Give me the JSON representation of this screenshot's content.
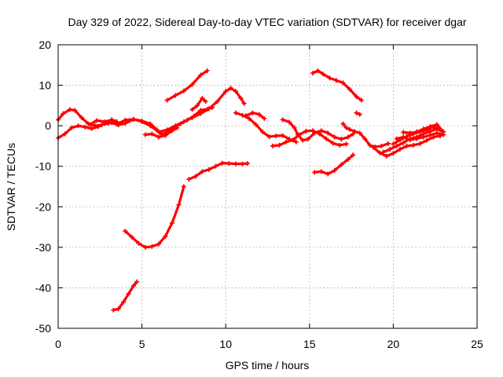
{
  "chart_data": {
    "type": "line",
    "title": "Day 329 of 2022, Sidereal Day-to-day VTEC variation (SDTVAR) for receiver dgar",
    "xlabel": "GPS time / hours",
    "ylabel": "SDTVAR / TECUs",
    "xlim": [
      0,
      25
    ],
    "ylim": [
      -50,
      20
    ],
    "xticks": [
      0,
      5,
      10,
      15,
      20,
      25
    ],
    "yticks": [
      -50,
      -40,
      -30,
      -20,
      -10,
      0,
      10,
      20
    ],
    "grid": true,
    "color": "#ff0000",
    "series": [
      {
        "name": "s1",
        "points": [
          [
            0,
            1.5
          ],
          [
            0.3,
            3
          ],
          [
            0.7,
            4
          ],
          [
            1.0,
            3.8
          ],
          [
            1.4,
            2
          ],
          [
            1.8,
            0.5
          ],
          [
            2.2,
            0
          ],
          [
            2.6,
            0.2
          ],
          [
            3.0,
            0.6
          ],
          [
            3.4,
            1.0
          ]
        ]
      },
      {
        "name": "s2",
        "points": [
          [
            0,
            -3
          ],
          [
            0.4,
            -2
          ],
          [
            0.8,
            -0.5
          ],
          [
            1.2,
            0
          ],
          [
            1.6,
            -0.3
          ],
          [
            2.0,
            -0.7
          ],
          [
            2.4,
            -0.2
          ],
          [
            2.8,
            0.6
          ],
          [
            3.2,
            0.8
          ],
          [
            3.6,
            0.2
          ],
          [
            4.0,
            0.6
          ],
          [
            4.5,
            1.6
          ],
          [
            5.0,
            1.0
          ],
          [
            5.5,
            0
          ],
          [
            6.0,
            -1.5
          ],
          [
            6.5,
            -1
          ],
          [
            7.0,
            0
          ],
          [
            7.5,
            1.0
          ],
          [
            8.0,
            2
          ],
          [
            8.5,
            3
          ],
          [
            9.0,
            4.2
          ],
          [
            9.5,
            6
          ],
          [
            10.0,
            8.5
          ],
          [
            10.3,
            9.3
          ],
          [
            10.6,
            8.5
          ],
          [
            10.9,
            6.8
          ],
          [
            11.1,
            5.5
          ]
        ]
      },
      {
        "name": "s3",
        "points": [
          [
            1.9,
            0.3
          ],
          [
            2.3,
            1.3
          ],
          [
            2.8,
            1.0
          ],
          [
            3.2,
            1.5
          ],
          [
            3.5,
            1.0
          ]
        ]
      },
      {
        "name": "s4",
        "points": [
          [
            3.0,
            0.8
          ],
          [
            3.5,
            0.4
          ],
          [
            4.0,
            1.4
          ],
          [
            4.5,
            1.6
          ],
          [
            5.0,
            1.2
          ],
          [
            5.5,
            0.5
          ],
          [
            5.9,
            -1.0
          ],
          [
            6.2,
            -2.2
          ],
          [
            6.5,
            -1.5
          ],
          [
            6.9,
            -0.5
          ],
          [
            7.3,
            0.5
          ],
          [
            7.7,
            1.4
          ],
          [
            8.1,
            2.4
          ],
          [
            8.5,
            3.8
          ],
          [
            8.9,
            4.1
          ],
          [
            9.2,
            4.5
          ]
        ]
      },
      {
        "name": "s5",
        "points": [
          [
            5.2,
            -2.2
          ],
          [
            5.6,
            -2.0
          ],
          [
            6.0,
            -2.8
          ],
          [
            6.4,
            -2.4
          ],
          [
            6.8,
            -1.2
          ],
          [
            7.1,
            -0.5
          ]
        ]
      },
      {
        "name": "s6",
        "points": [
          [
            6.5,
            6.3
          ],
          [
            7.0,
            7.5
          ],
          [
            7.5,
            8.6
          ],
          [
            8.0,
            10.2
          ],
          [
            8.5,
            12.5
          ],
          [
            8.9,
            13.6
          ]
        ]
      },
      {
        "name": "s7",
        "points": [
          [
            8.0,
            4.0
          ],
          [
            8.3,
            5.0
          ],
          [
            8.6,
            6.8
          ],
          [
            8.8,
            6.0
          ]
        ]
      },
      {
        "name": "s8",
        "points": [
          [
            3.3,
            -45.5
          ],
          [
            3.6,
            -45.2
          ],
          [
            3.9,
            -43.5
          ],
          [
            4.2,
            -41.5
          ],
          [
            4.5,
            -39.5
          ],
          [
            4.7,
            -38.5
          ]
        ]
      },
      {
        "name": "s9",
        "points": [
          [
            4.0,
            -26
          ],
          [
            4.4,
            -27.5
          ],
          [
            4.8,
            -29
          ],
          [
            5.2,
            -30
          ],
          [
            5.6,
            -29.8
          ],
          [
            6.0,
            -29.2
          ],
          [
            6.4,
            -27.3
          ],
          [
            6.8,
            -24
          ],
          [
            7.2,
            -19.5
          ],
          [
            7.5,
            -15
          ]
        ]
      },
      {
        "name": "s10",
        "points": [
          [
            7.8,
            -13.2
          ],
          [
            8.2,
            -12.5
          ],
          [
            8.6,
            -11.3
          ],
          [
            9.0,
            -10.8
          ],
          [
            9.4,
            -10
          ],
          [
            9.8,
            -9.2
          ],
          [
            10.2,
            -9.3
          ],
          [
            10.6,
            -9.4
          ],
          [
            11.0,
            -9.4
          ],
          [
            11.3,
            -9.3
          ]
        ]
      },
      {
        "name": "s11",
        "points": [
          [
            10.6,
            3.2
          ],
          [
            11.0,
            2.6
          ],
          [
            11.4,
            1.8
          ],
          [
            11.8,
            0.3
          ],
          [
            12.2,
            -1.5
          ],
          [
            12.6,
            -2.7
          ],
          [
            13.0,
            -2.5
          ],
          [
            13.4,
            -2.4
          ],
          [
            13.8,
            -3.3
          ],
          [
            14.2,
            -4.0
          ]
        ]
      },
      {
        "name": "s12",
        "points": [
          [
            11.2,
            2.5
          ],
          [
            11.6,
            3.2
          ],
          [
            12.0,
            2.8
          ],
          [
            12.3,
            1.8
          ]
        ]
      },
      {
        "name": "s13",
        "points": [
          [
            12.8,
            -5
          ],
          [
            13.2,
            -4.8
          ],
          [
            13.6,
            -4.0
          ],
          [
            14.0,
            -3.5
          ],
          [
            14.4,
            -2.2
          ],
          [
            14.8,
            -1.3
          ],
          [
            15.2,
            -1.2
          ],
          [
            15.6,
            -2.0
          ],
          [
            16.0,
            -3.2
          ],
          [
            16.4,
            -4.3
          ],
          [
            16.8,
            -4.8
          ],
          [
            17.2,
            -4.5
          ]
        ]
      },
      {
        "name": "s14",
        "points": [
          [
            13.4,
            1.5
          ],
          [
            13.8,
            0.9
          ],
          [
            14.1,
            -0.5
          ],
          [
            14.3,
            -2.2
          ],
          [
            14.6,
            -3.6
          ],
          [
            14.9,
            -3.3
          ],
          [
            15.3,
            -1.8
          ],
          [
            15.7,
            -1.2
          ],
          [
            16.1,
            -1.8
          ],
          [
            16.5,
            -2.8
          ],
          [
            16.9,
            -3.3
          ],
          [
            17.3,
            -2.8
          ],
          [
            17.6,
            -2.0
          ]
        ]
      },
      {
        "name": "s15",
        "points": [
          [
            15.2,
            13.0
          ],
          [
            15.5,
            13.6
          ],
          [
            15.8,
            12.8
          ],
          [
            16.2,
            11.8
          ],
          [
            16.6,
            11.2
          ],
          [
            17.0,
            10.6
          ],
          [
            17.4,
            9.0
          ],
          [
            17.8,
            7.2
          ],
          [
            18.1,
            6.3
          ]
        ]
      },
      {
        "name": "s16",
        "points": [
          [
            15.3,
            -11.5
          ],
          [
            15.7,
            -11.3
          ],
          [
            16.1,
            -11.9
          ],
          [
            16.5,
            -11.0
          ],
          [
            16.9,
            -9.6
          ],
          [
            17.3,
            -8.3
          ],
          [
            17.6,
            -7.2
          ]
        ]
      },
      {
        "name": "s17",
        "points": [
          [
            17.0,
            0.5
          ],
          [
            17.2,
            -0.5
          ],
          [
            17.4,
            -0.9
          ],
          [
            17.7,
            -1.4
          ],
          [
            18.0,
            -1.8
          ],
          [
            18.3,
            -3.2
          ],
          [
            18.6,
            -4.8
          ],
          [
            18.9,
            -5.2
          ],
          [
            19.3,
            -5.0
          ],
          [
            19.7,
            -4.4
          ]
        ]
      },
      {
        "name": "s18",
        "points": [
          [
            17.8,
            3.2
          ],
          [
            18.0,
            2.8
          ]
        ]
      },
      {
        "name": "s19",
        "points": [
          [
            18.8,
            -5.3
          ],
          [
            19.2,
            -6.7
          ],
          [
            19.6,
            -7.5
          ],
          [
            20.0,
            -6.8
          ],
          [
            20.4,
            -5.8
          ],
          [
            20.8,
            -5.0
          ],
          [
            21.2,
            -4.8
          ],
          [
            21.6,
            -4.4
          ],
          [
            22.0,
            -3.6
          ],
          [
            22.4,
            -2.8
          ],
          [
            22.8,
            -2.5
          ]
        ]
      },
      {
        "name": "s20",
        "points": [
          [
            19.4,
            -6.5
          ],
          [
            19.8,
            -5.8
          ],
          [
            20.2,
            -5.0
          ],
          [
            20.6,
            -4.2
          ],
          [
            21.0,
            -3.2
          ],
          [
            21.4,
            -2.8
          ],
          [
            21.8,
            -2.0
          ],
          [
            22.2,
            -1.4
          ],
          [
            22.6,
            -0.8
          ],
          [
            22.9,
            -1.3
          ]
        ]
      },
      {
        "name": "s21",
        "points": [
          [
            20.0,
            -4.5
          ],
          [
            20.4,
            -3.5
          ],
          [
            20.8,
            -2.6
          ],
          [
            21.2,
            -2.0
          ],
          [
            21.6,
            -1.5
          ],
          [
            22.0,
            -1.0
          ],
          [
            22.4,
            -0.3
          ],
          [
            22.8,
            -1.0
          ]
        ]
      },
      {
        "name": "s22",
        "points": [
          [
            20.6,
            -1.6
          ],
          [
            21.0,
            -1.8
          ],
          [
            21.4,
            -1.5
          ],
          [
            21.8,
            -0.8
          ],
          [
            22.2,
            -0.2
          ],
          [
            22.6,
            0.3
          ],
          [
            23.0,
            -1.5
          ]
        ]
      },
      {
        "name": "s23",
        "points": [
          [
            20.2,
            -3.2
          ],
          [
            20.6,
            -2.8
          ],
          [
            21.0,
            -3.5
          ],
          [
            21.4,
            -3.2
          ],
          [
            21.8,
            -2.8
          ],
          [
            22.2,
            -2.3
          ],
          [
            22.6,
            -1.8
          ],
          [
            23.0,
            -2.2
          ]
        ]
      }
    ]
  }
}
